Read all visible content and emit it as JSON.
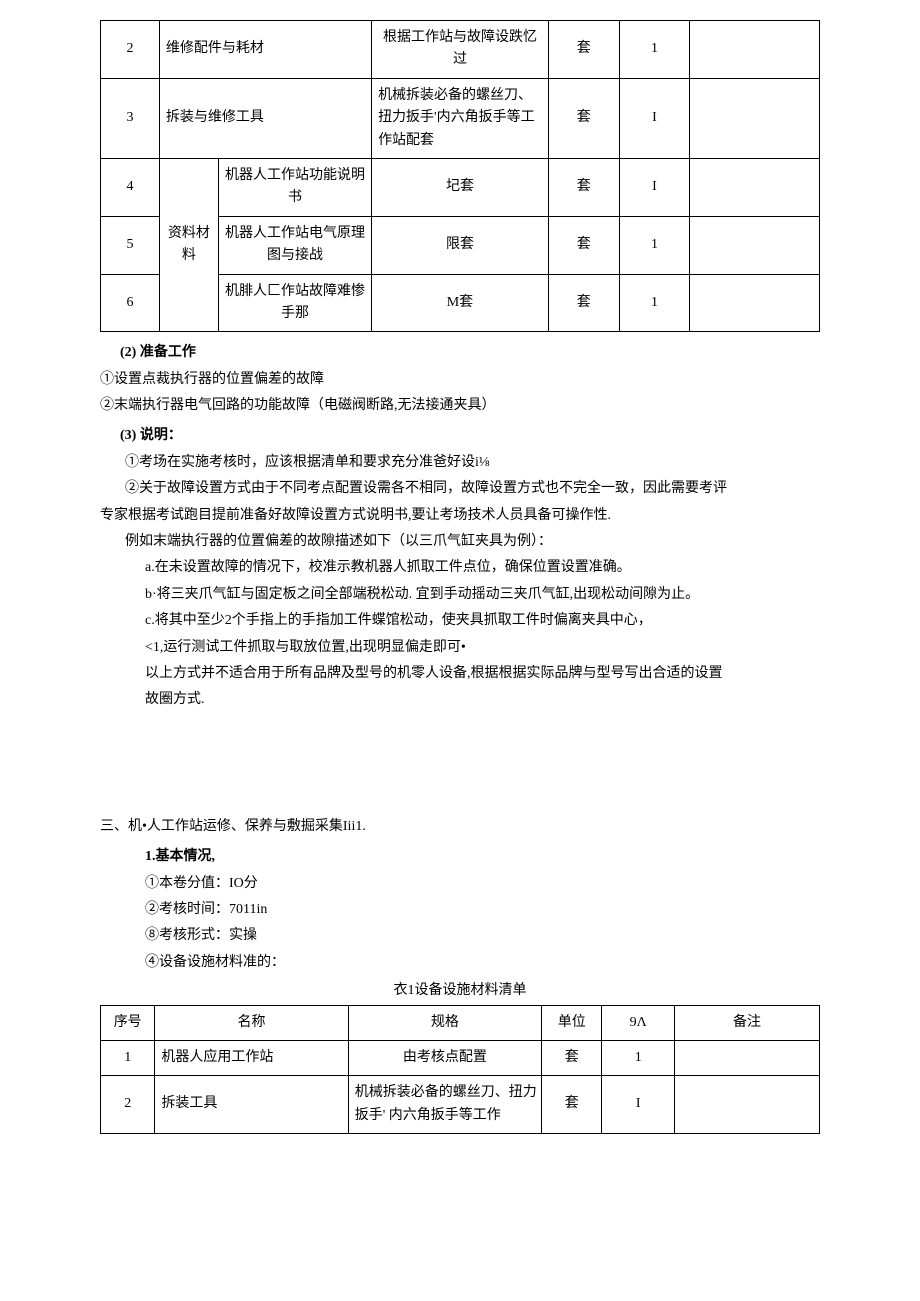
{
  "table1": {
    "rows": [
      {
        "num": "2",
        "name": "维修配件与耗材",
        "spec": "根据工作站与故障设跌忆过",
        "unit": "套",
        "qty": "1",
        "remark": ""
      },
      {
        "num": "3",
        "name": "拆装与维修工具",
        "spec": "机械拆装必备的螺丝刀、扭力扳手'内六角扳手等工作站配套",
        "unit": "套",
        "qty": "I",
        "remark": ""
      },
      {
        "num": "4",
        "name": "机器人工作站功能说明书",
        "spec": "圮套",
        "unit": "套",
        "qty": "I",
        "remark": ""
      },
      {
        "num": "5",
        "name": "机器人工作站电气原理图与接战",
        "spec": "限套",
        "unit": "套",
        "qty": "1",
        "remark": ""
      },
      {
        "num": "6",
        "name": "机腓人匚作站故障难惨手那",
        "spec": "M套",
        "unit": "套",
        "qty": "1",
        "remark": ""
      }
    ],
    "merged_label": "资料材料"
  },
  "section2": {
    "heading": "(2) 准备工作",
    "line1": "①设置点裁执行器的位置偏差的故障",
    "line2": "②末端执行器电气回路的功能故障（电磁阀断路,无法接通夹具）"
  },
  "section3": {
    "heading": "(3) 说明：",
    "line1": "①考场在实施考核时，应该根据清单和要求充分准爸好设i⅛",
    "line2a": "②关于故障设置方式由于不同考点配置设需各不相同，故障设置方式也不完全一致，因此需要考评",
    "line2b": "专家根据考试跑目提前准备好故障设置方式说明书,要让考场技术人员具备可操作性.",
    "line3": "例如末端执行器的位置偏差的故隙描述如下（以三爪气缸夹具为例）：",
    "line4": "a.在未设置故障的情况下，校准示教机器人抓取工件点位，确保位置设置准确。",
    "line5": "b·将三夹爪气缸与固定板之间全部端税松动. 宜到手动摇动三夹爪气缸,出现松动间隙为止。",
    "line6": "c.将其中至少2个手指上的手指加工件蝶馆松动，使夹具抓取工件时偏离夹具中心，",
    "line7": "<1,运行测试工件抓取与取放位置,出现明显偏走即可•",
    "line8a": "以上方式并不适合用于所有品牌及型号的机零人设备,根据根据实际品牌与型号写出合适的设置",
    "line8b": "故圈方式."
  },
  "section_three": {
    "title": "三、机•人工作站运修、保养与敷掘采集Iii1.",
    "sub_heading": "1.基本情况,",
    "line1": "①本卷分值：IO分",
    "line2": "②考核时间：7011in",
    "line3": "⑧考核形式：实操",
    "line4": "④设备设施材料准的："
  },
  "table2": {
    "caption": "衣1设备设施材料清单",
    "headers": [
      "序号",
      "名称",
      "规格",
      "单位",
      "9Λ",
      "备注"
    ],
    "rows": [
      {
        "num": "1",
        "name": "机器人应用工作站",
        "spec": "由考核点配置",
        "unit": "套",
        "qty": "1",
        "remark": ""
      },
      {
        "num": "2",
        "name": "拆装工具",
        "spec": "机械拆装必备的螺丝刀、扭力扳手' 内六角扳手等工作",
        "unit": "套",
        "qty": "I",
        "remark": ""
      }
    ]
  }
}
